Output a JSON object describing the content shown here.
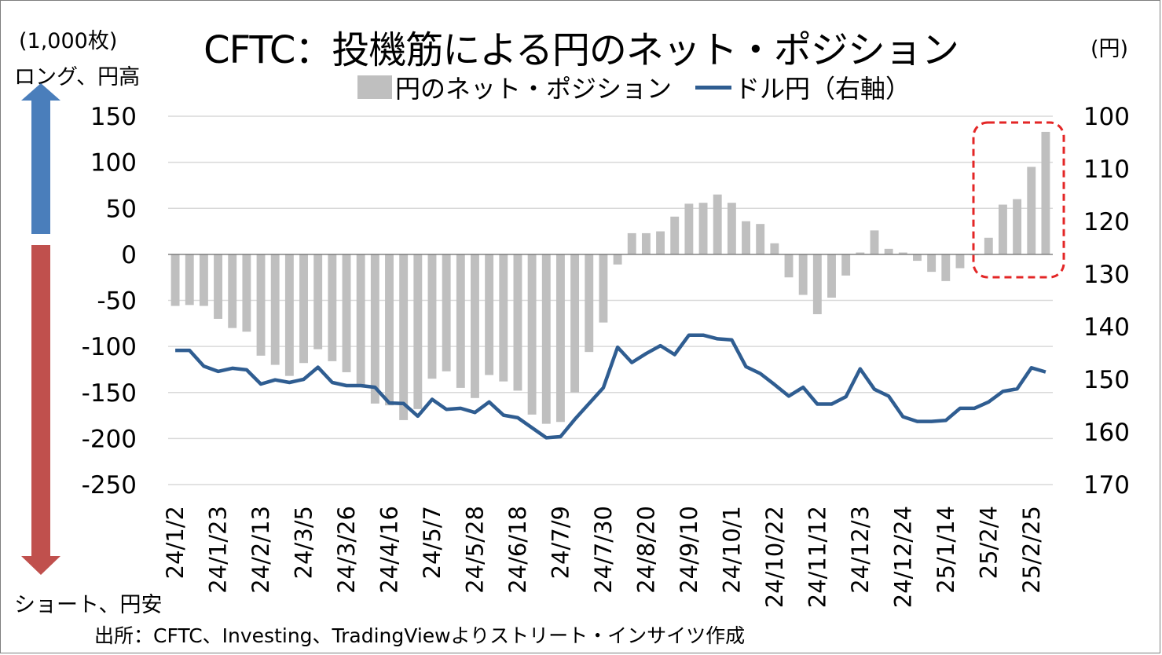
{
  "title": "CFTC：投機筋による円のネット・ポジション",
  "legend": {
    "bar_label": "円のネット・ポジション",
    "line_label": "ドル円（右軸）"
  },
  "left_unit": "(1,000枚)",
  "right_unit": "(円)",
  "arrow_top_label": "ロング、円高",
  "arrow_bottom_label": "ショート、円安",
  "source": "出所：CFTC、Investing、TradingViewよりストリート・インサイツ作成",
  "colors": {
    "bar": "#bfbfbf",
    "line": "#2f5d91",
    "arrow_up": "#4a7ebb",
    "arrow_down": "#c0504d",
    "highlight": "#e32626"
  },
  "chart_data": {
    "type": "bar",
    "x_tick_labels": [
      "24/1/2",
      "24/1/23",
      "24/2/13",
      "24/3/5",
      "24/3/26",
      "24/4/16",
      "24/5/7",
      "24/5/28",
      "24/6/18",
      "24/7/9",
      "24/7/30",
      "24/8/20",
      "24/9/10",
      "24/10/1",
      "24/10/22",
      "24/11/12",
      "24/12/3",
      "24/12/24",
      "25/1/14",
      "25/2/4",
      "25/2/25"
    ],
    "left_axis": {
      "min": -250,
      "max": 150,
      "ticks": [
        150,
        100,
        50,
        0,
        -50,
        -100,
        -150,
        -200,
        -250
      ]
    },
    "right_axis": {
      "min": 100,
      "max": 170,
      "reversed": true,
      "ticks": [
        100,
        110,
        120,
        130,
        140,
        150,
        160,
        170
      ]
    },
    "series": [
      {
        "name": "円のネット・ポジション",
        "type": "bar",
        "axis": "left",
        "values": [
          -56,
          -55,
          -56,
          -70,
          -80,
          -84,
          -110,
          -120,
          -132,
          -118,
          -103,
          -116,
          -128,
          -144,
          -162,
          -164,
          -180,
          -168,
          -135,
          -127,
          -145,
          -156,
          -131,
          -138,
          -148,
          -174,
          -184,
          -182,
          -150,
          -106,
          -74,
          -11,
          23,
          23,
          25,
          41,
          55,
          56,
          65,
          56,
          36,
          33,
          12,
          -25,
          -44,
          -65,
          -47,
          -23,
          2,
          26,
          6,
          2,
          -7,
          -19,
          -29,
          -15,
          0,
          18,
          54,
          60,
          95,
          133
        ]
      },
      {
        "name": "ドル円（右軸）",
        "type": "line",
        "axis": "right",
        "values": [
          144.5,
          144.5,
          147.5,
          148.5,
          147.9,
          148.2,
          150.9,
          150.1,
          150.6,
          150.0,
          147.7,
          150.6,
          151.2,
          151.2,
          151.5,
          154.5,
          154.6,
          157.0,
          153.8,
          155.7,
          155.5,
          156.3,
          154.3,
          156.8,
          157.3,
          159.2,
          161.1,
          160.9,
          157.6,
          154.6,
          151.6,
          143.9,
          146.8,
          145.1,
          143.6,
          145.3,
          141.6,
          141.6,
          142.3,
          142.5,
          147.6,
          148.9,
          151.0,
          153.2,
          151.5,
          154.7,
          154.7,
          153.3,
          148.0,
          151.9,
          153.2,
          157.1,
          158.0,
          158.0,
          157.8,
          155.5,
          155.5,
          154.3,
          152.3,
          151.8,
          147.8,
          148.6
        ]
      }
    ]
  }
}
